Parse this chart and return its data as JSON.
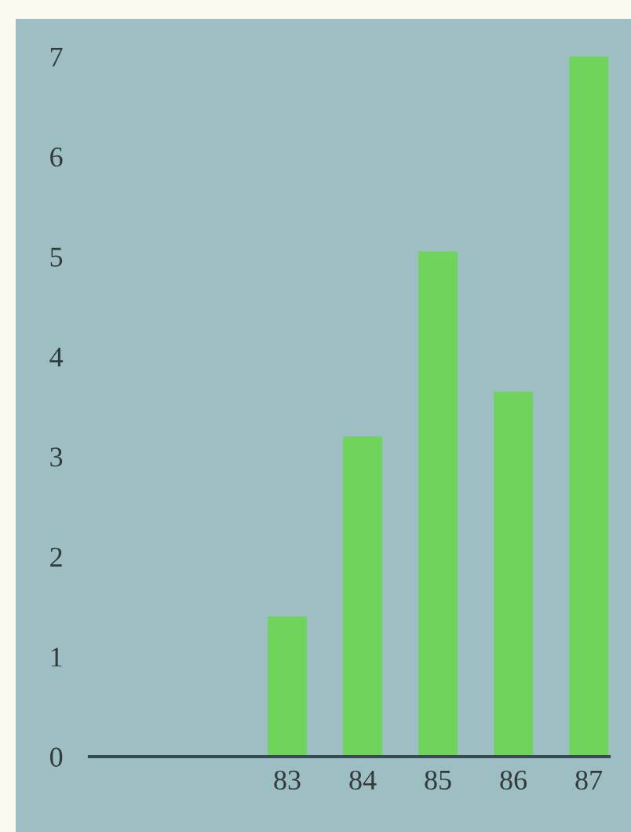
{
  "chart_data": {
    "type": "bar",
    "categories": [
      null,
      null,
      "83",
      "84",
      "85",
      "86",
      "87"
    ],
    "values": [
      null,
      null,
      1.4,
      3.2,
      5.05,
      3.65,
      7.0
    ],
    "color": "#6fd35c",
    "ylim": [
      0,
      7
    ],
    "yticks": [
      0,
      1,
      2,
      3,
      4,
      5,
      6,
      7
    ],
    "grid": false,
    "legend": false
  }
}
